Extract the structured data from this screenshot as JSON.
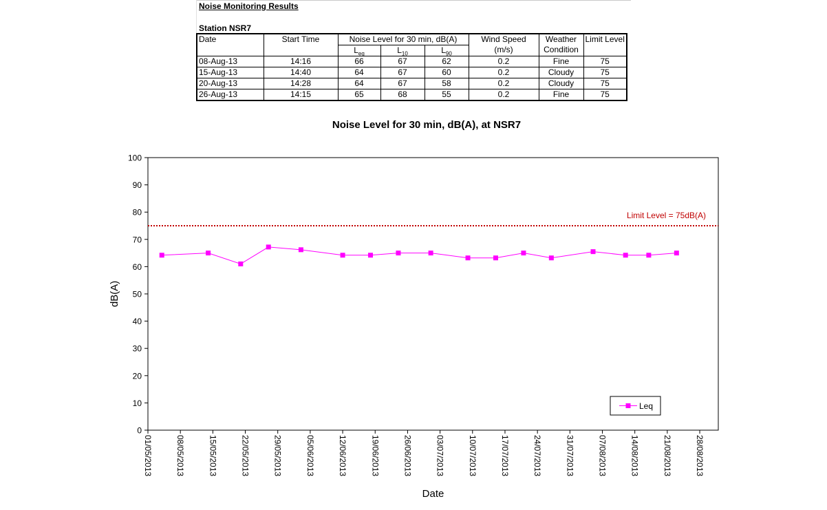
{
  "table": {
    "section_title": "Noise Monitoring Results",
    "station_title": "Station NSR7",
    "headers": {
      "date": "Date",
      "start_time": "Start Time",
      "noise_group": "Noise Level for 30 min, dB(A)",
      "leq_main": "L",
      "leq_sub": "eq",
      "l10_main": "L",
      "l10_sub": "10",
      "l90_main": "L",
      "l90_sub": "90",
      "wind_speed": "Wind Speed",
      "wind_unit": "(m/s)",
      "weather_1": "Weather",
      "weather_2": "Condition",
      "limit_level": "Limit Level"
    },
    "rows": [
      {
        "date": "08-Aug-13",
        "start": "14:16",
        "leq": "66",
        "l10": "67",
        "l90": "62",
        "wind": "0.2",
        "weather": "Fine",
        "limit": "75"
      },
      {
        "date": "15-Aug-13",
        "start": "14:40",
        "leq": "64",
        "l10": "67",
        "l90": "60",
        "wind": "0.2",
        "weather": "Cloudy",
        "limit": "75"
      },
      {
        "date": "20-Aug-13",
        "start": "14:28",
        "leq": "64",
        "l10": "67",
        "l90": "58",
        "wind": "0.2",
        "weather": "Cloudy",
        "limit": "75"
      },
      {
        "date": "26-Aug-13",
        "start": "14:15",
        "leq": "65",
        "l10": "68",
        "l90": "55",
        "wind": "0.2",
        "weather": "Fine",
        "limit": "75"
      }
    ]
  },
  "chart_data": {
    "type": "line",
    "title": "Noise Level for 30 min, dB(A), at NSR7",
    "xlabel": "Date",
    "ylabel": "dB(A)",
    "ylim": [
      0,
      100
    ],
    "y_ticks": [
      "0",
      "10",
      "20",
      "30",
      "40",
      "50",
      "60",
      "70",
      "80",
      "90",
      "100"
    ],
    "xlim": [
      "2013-05-01",
      "2013-09-01"
    ],
    "x_tick_labels": [
      "01/05/2013",
      "08/05/2013",
      "15/05/2013",
      "22/05/2013",
      "29/05/2013",
      "05/06/2013",
      "12/06/2013",
      "19/06/2013",
      "26/06/2013",
      "03/07/2013",
      "10/07/2013",
      "17/07/2013",
      "24/07/2013",
      "31/07/2013",
      "07/08/2013",
      "14/08/2013",
      "21/08/2013",
      "28/08/2013"
    ],
    "x_tick_dates": [
      "2013-05-01",
      "2013-05-08",
      "2013-05-15",
      "2013-05-22",
      "2013-05-29",
      "2013-06-05",
      "2013-06-12",
      "2013-06-19",
      "2013-06-26",
      "2013-07-03",
      "2013-07-10",
      "2013-07-17",
      "2013-07-24",
      "2013-07-31",
      "2013-08-07",
      "2013-08-14",
      "2013-08-21",
      "2013-08-28"
    ],
    "grid": false,
    "legend_position": "bottom-right",
    "series": [
      {
        "name": "Leq",
        "color": "#FF00FF",
        "marker": "square",
        "points": [
          {
            "x": "2013-05-04",
            "y": 64.2
          },
          {
            "x": "2013-05-14",
            "y": 65
          },
          {
            "x": "2013-05-21",
            "y": 61
          },
          {
            "x": "2013-05-27",
            "y": 67.2
          },
          {
            "x": "2013-06-03",
            "y": 66.2
          },
          {
            "x": "2013-06-12",
            "y": 64.2
          },
          {
            "x": "2013-06-18",
            "y": 64.2
          },
          {
            "x": "2013-06-24",
            "y": 65
          },
          {
            "x": "2013-07-01",
            "y": 65
          },
          {
            "x": "2013-07-09",
            "y": 63.2
          },
          {
            "x": "2013-07-15",
            "y": 63.2
          },
          {
            "x": "2013-07-21",
            "y": 65
          },
          {
            "x": "2013-07-27",
            "y": 63.2
          },
          {
            "x": "2013-08-05",
            "y": 65.5
          },
          {
            "x": "2013-08-12",
            "y": 64.2
          },
          {
            "x": "2013-08-17",
            "y": 64.2
          },
          {
            "x": "2013-08-23",
            "y": 65
          }
        ]
      }
    ],
    "limit_line": {
      "value": 75,
      "label": "Limit Level  = 75dB(A)",
      "color": "#C00000"
    }
  }
}
